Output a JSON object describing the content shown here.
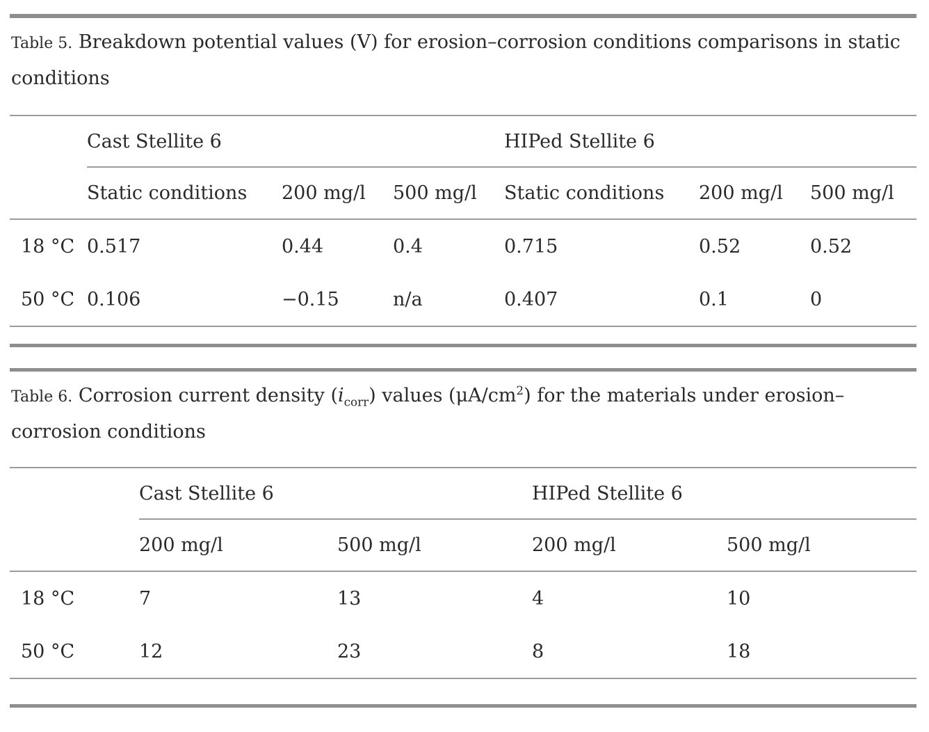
{
  "page": {
    "background": "#ffffff",
    "text_color": "#2a2a2a",
    "rule_color_thick": "#8e8e8e",
    "rule_color_thin": "#9b9b9b"
  },
  "table5": {
    "label": "Table 5.",
    "title": "Breakdown potential values (V) for erosion–corrosion conditions comparisons in static conditions",
    "group_headers": [
      {
        "label": "Cast Stellite 6"
      },
      {
        "label": "HIPed Stellite 6"
      }
    ],
    "column_headers": [
      "Static conditions",
      "200 mg/l",
      "500 mg/l",
      "Static conditions",
      "200 mg/l",
      "500 mg/l"
    ],
    "rows": [
      {
        "label": "18 °C",
        "values": [
          "0.517",
          "0.44",
          "0.4",
          "0.715",
          "0.52",
          "0.52"
        ]
      },
      {
        "label": "50 °C",
        "values": [
          "0.106",
          "−0.15",
          "n/a",
          "0.407",
          "0.1",
          "0"
        ]
      }
    ]
  },
  "table6": {
    "label": "Table 6.",
    "title_segments": [
      {
        "text": "Corrosion current density (",
        "style": ""
      },
      {
        "text": "i",
        "style": "italic"
      },
      {
        "text": "corr",
        "style": "sub"
      },
      {
        "text": ") values (μA/cm",
        "style": ""
      },
      {
        "text": "2",
        "style": "sup"
      },
      {
        "text": ") for the materials under erosion–corrosion conditions",
        "style": ""
      }
    ],
    "group_headers": [
      {
        "label": "Cast Stellite 6"
      },
      {
        "label": "HIPed Stellite 6"
      }
    ],
    "column_headers": [
      "200 mg/l",
      "500 mg/l",
      "200 mg/l",
      "500 mg/l"
    ],
    "rows": [
      {
        "label": "18 °C",
        "values": [
          "7",
          "13",
          "4",
          "10"
        ]
      },
      {
        "label": "50 °C",
        "values": [
          "12",
          "23",
          "8",
          "18"
        ]
      }
    ]
  }
}
